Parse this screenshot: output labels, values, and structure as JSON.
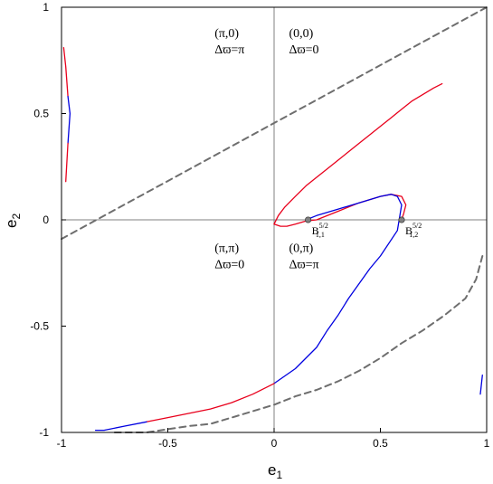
{
  "chart_data": {
    "type": "line",
    "xlabel": "e",
    "xlabel_sub": "1",
    "ylabel": "e",
    "ylabel_sub": "2",
    "xlim": [
      -1,
      1
    ],
    "ylim": [
      -1,
      1
    ],
    "xticks": [
      "-1",
      "-0.5",
      "0",
      "0.5",
      "1"
    ],
    "yticks": [
      "-1",
      "-0.5",
      "0",
      "0.5",
      "1"
    ],
    "grid": false,
    "zero_lines": true,
    "series": [
      {
        "color": "#e8001c",
        "style": "solid",
        "x": [
          0.0,
          0.02,
          0.05,
          0.1,
          0.15,
          0.2,
          0.25,
          0.3,
          0.35,
          0.4,
          0.45,
          0.5,
          0.55,
          0.6,
          0.65,
          0.7,
          0.75,
          0.79
        ],
        "y": [
          -0.02,
          0.02,
          0.06,
          0.11,
          0.16,
          0.2,
          0.24,
          0.28,
          0.32,
          0.36,
          0.4,
          0.44,
          0.48,
          0.52,
          0.56,
          0.59,
          0.62,
          0.64
        ]
      },
      {
        "color": "#e8001c",
        "style": "solid",
        "x": [
          0.0,
          0.03,
          0.06,
          0.1,
          0.15,
          0.2,
          0.3,
          0.4,
          0.5,
          0.55,
          0.6,
          0.62,
          0.61,
          0.6
        ],
        "y": [
          -0.02,
          -0.03,
          -0.03,
          -0.02,
          -0.005,
          0.0,
          0.04,
          0.08,
          0.11,
          0.12,
          0.11,
          0.07,
          0.03,
          0.0
        ]
      },
      {
        "color": "#0000e0",
        "style": "solid",
        "x": [
          0.15,
          0.2,
          0.3,
          0.4,
          0.5,
          0.55,
          0.58,
          0.6,
          0.58,
          0.5,
          0.45,
          0.4,
          0.35,
          0.3,
          0.25,
          0.2,
          0.1,
          0.0
        ],
        "y": [
          0.0,
          0.02,
          0.05,
          0.08,
          0.11,
          0.12,
          0.11,
          0.07,
          -0.05,
          -0.17,
          -0.23,
          -0.3,
          -0.37,
          -0.45,
          -0.52,
          -0.6,
          -0.7,
          -0.77
        ]
      },
      {
        "color": "#e8001c",
        "style": "solid",
        "x": [
          0.0,
          -0.1,
          -0.2,
          -0.3,
          -0.4,
          -0.5,
          -0.6
        ],
        "y": [
          -0.77,
          -0.82,
          -0.86,
          -0.89,
          -0.91,
          -0.93,
          -0.95
        ]
      },
      {
        "color": "#0000e0",
        "style": "solid",
        "x": [
          -0.6,
          -0.7,
          -0.8,
          -0.84
        ],
        "y": [
          -0.95,
          -0.97,
          -0.99,
          -0.99
        ]
      },
      {
        "color": "#e8001c",
        "style": "solid",
        "x": [
          -0.99,
          -0.98,
          -0.97
        ],
        "y": [
          0.81,
          0.72,
          0.58
        ]
      },
      {
        "color": "#0000e0",
        "style": "solid",
        "x": [
          -0.97,
          -0.96,
          -0.97
        ],
        "y": [
          0.58,
          0.5,
          0.36
        ]
      },
      {
        "color": "#e8001c",
        "style": "solid",
        "x": [
          -0.97,
          -0.98
        ],
        "y": [
          0.36,
          0.18
        ]
      },
      {
        "color": "#0000e0",
        "style": "solid",
        "x": [
          0.97,
          0.98
        ],
        "y": [
          -0.82,
          -0.73
        ]
      },
      {
        "color": "#6e6e6e",
        "style": "dashed",
        "x": [
          -1.0,
          1.0
        ],
        "y": [
          -0.09,
          1.0
        ]
      },
      {
        "color": "#6e6e6e",
        "style": "dashed",
        "x": [
          -0.75,
          -0.6,
          -0.4,
          -0.3,
          -0.2,
          -0.1,
          0.0,
          0.1,
          0.2,
          0.3,
          0.4,
          0.5,
          0.6,
          0.7,
          0.8,
          0.9,
          0.95,
          0.98
        ],
        "y": [
          -1.0,
          -1.0,
          -0.97,
          -0.96,
          -0.93,
          -0.9,
          -0.87,
          -0.83,
          -0.8,
          -0.76,
          -0.71,
          -0.65,
          -0.58,
          -0.52,
          -0.45,
          -0.37,
          -0.28,
          -0.17
        ]
      }
    ],
    "points": [
      {
        "x": 0.16,
        "y": 0.0,
        "color": "#808080",
        "label": "B",
        "sub": "1,1",
        "sup": "5/2"
      },
      {
        "x": 0.6,
        "y": 0.0,
        "color": "#808080",
        "label": "B",
        "sub": "1,2",
        "sup": "5/2"
      }
    ],
    "annotations": [
      {
        "x": -0.28,
        "y": 0.86,
        "lines": [
          "(π,0)",
          "Δϖ=π"
        ]
      },
      {
        "x": 0.07,
        "y": 0.86,
        "lines": [
          "(0,0)",
          "Δϖ=0"
        ]
      },
      {
        "x": -0.28,
        "y": -0.15,
        "lines": [
          "(π,π)",
          "Δϖ=0"
        ]
      },
      {
        "x": 0.07,
        "y": -0.15,
        "lines": [
          "(0,π)",
          "Δϖ=π"
        ]
      }
    ]
  }
}
